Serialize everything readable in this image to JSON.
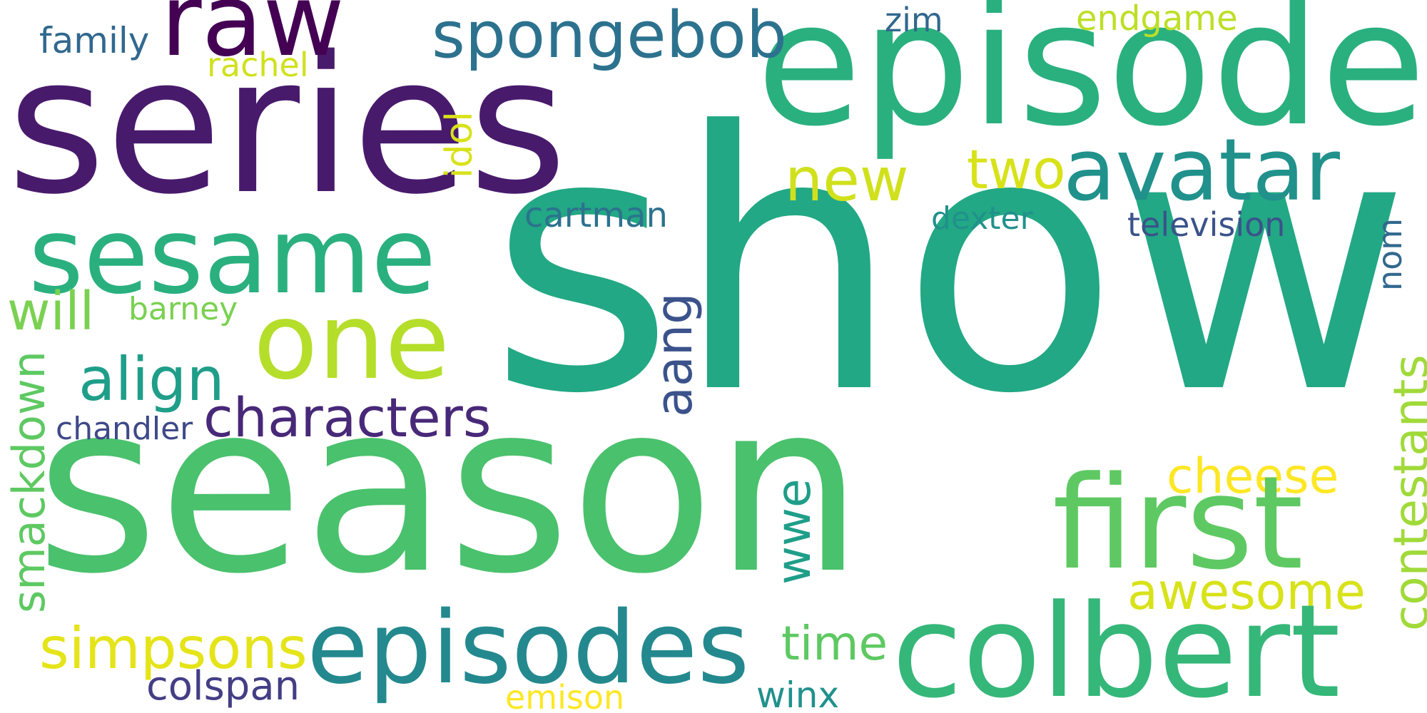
{
  "words": [
    {
      "text": "show",
      "color": "#22a884",
      "rotated": false
    },
    {
      "text": "season",
      "color": "#4ac16d",
      "rotated": false
    },
    {
      "text": "series",
      "color": "#481a6c",
      "rotated": false
    },
    {
      "text": "episode",
      "color": "#2ab07f",
      "rotated": false
    },
    {
      "text": "raw",
      "color": "#440154",
      "rotated": false
    },
    {
      "text": "spongebob",
      "color": "#2c728e",
      "rotated": false
    },
    {
      "text": "family",
      "color": "#31688e",
      "rotated": false
    },
    {
      "text": "rachel",
      "color": "#d0e11c",
      "rotated": false
    },
    {
      "text": "zim",
      "color": "#31688e",
      "rotated": false
    },
    {
      "text": "endgame",
      "color": "#bddf26",
      "rotated": false
    },
    {
      "text": "idol",
      "color": "#d8e219",
      "rotated": true
    },
    {
      "text": "new",
      "color": "#d0e11c",
      "rotated": false
    },
    {
      "text": "two",
      "color": "#d8e219",
      "rotated": false
    },
    {
      "text": "avatar",
      "color": "#21918c",
      "rotated": false
    },
    {
      "text": "sesame",
      "color": "#2ab07f",
      "rotated": false
    },
    {
      "text": "one",
      "color": "#b5de2b",
      "rotated": false
    },
    {
      "text": "will",
      "color": "#7ad151",
      "rotated": false
    },
    {
      "text": "barney",
      "color": "#7ad151",
      "rotated": false
    },
    {
      "text": "cartman",
      "color": "#2c728e",
      "rotated": false
    },
    {
      "text": "dexter",
      "color": "#21918c",
      "rotated": false
    },
    {
      "text": "television",
      "color": "#3b528b",
      "rotated": false
    },
    {
      "text": "nom",
      "color": "#31688e",
      "rotated": true
    },
    {
      "text": "align",
      "color": "#1f9e89",
      "rotated": false
    },
    {
      "text": "aang",
      "color": "#3b528b",
      "rotated": true
    },
    {
      "text": "characters",
      "color": "#482878",
      "rotated": false
    },
    {
      "text": "chandler",
      "color": "#3e4989",
      "rotated": false
    },
    {
      "text": "smackdown",
      "color": "#5ec962",
      "rotated": true
    },
    {
      "text": "contestants",
      "color": "#a0da39",
      "rotated": true
    },
    {
      "text": "cheese",
      "color": "#fde725",
      "rotated": false
    },
    {
      "text": "first",
      "color": "#5ec962",
      "rotated": false
    },
    {
      "text": "wwe",
      "color": "#1f9e89",
      "rotated": true
    },
    {
      "text": "awesome",
      "color": "#d8e219",
      "rotated": false
    },
    {
      "text": "colbert",
      "color": "#35b779",
      "rotated": false
    },
    {
      "text": "episodes",
      "color": "#23898e",
      "rotated": false
    },
    {
      "text": "simpsons",
      "color": "#e5e419",
      "rotated": false
    },
    {
      "text": "colspan",
      "color": "#433e85",
      "rotated": false
    },
    {
      "text": "time",
      "color": "#5ec962",
      "rotated": false
    },
    {
      "text": "winx",
      "color": "#21918c",
      "rotated": false
    },
    {
      "text": "emison",
      "color": "#fde725",
      "rotated": false
    }
  ]
}
